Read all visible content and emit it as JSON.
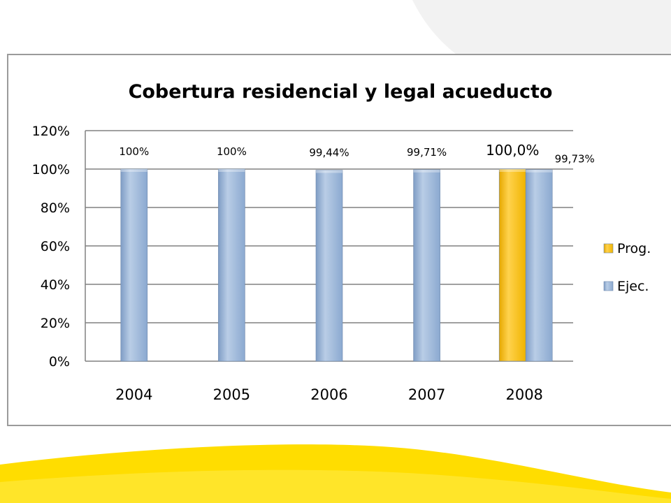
{
  "chart_data": {
    "type": "bar",
    "title": "Cobertura residencial y legal acueducto",
    "categories": [
      "2004",
      "2005",
      "2006",
      "2007",
      "2008"
    ],
    "series": [
      {
        "name": "Prog.",
        "color": "#ffc000",
        "values": [
          null,
          null,
          null,
          null,
          100.0
        ]
      },
      {
        "name": "Ejec.",
        "color": "#95b3d7",
        "values": [
          100,
          100,
          99.44,
          99.71,
          99.73
        ]
      }
    ],
    "data_labels": {
      "Prog.": [
        null,
        null,
        null,
        null,
        "100,0%"
      ],
      "Ejec.": [
        "100%",
        "100%",
        "99,44%",
        "99,71%",
        "99,73%"
      ]
    },
    "y_ticks": [
      "0%",
      "20%",
      "40%",
      "60%",
      "80%",
      "100%",
      "120%"
    ],
    "ylim": [
      0,
      120
    ],
    "y_unit": "%",
    "grid": true,
    "legend_position": "right"
  },
  "colors": {
    "background_yellow": "#ffdd00",
    "background_gray": "#f2f2f2",
    "gridline": "#808080",
    "frame_border": "#9a9a9a"
  }
}
